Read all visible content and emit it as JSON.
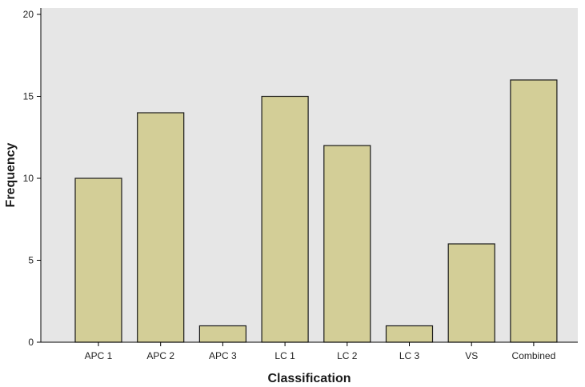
{
  "chart_data": {
    "type": "bar",
    "title": "",
    "xlabel": "Classification",
    "ylabel": "Frequency",
    "categories": [
      "APC 1",
      "APC 2",
      "APC 3",
      "LC 1",
      "LC 2",
      "LC 3",
      "VS",
      "Combined"
    ],
    "values": [
      10,
      14,
      1,
      15,
      12,
      1,
      6,
      16
    ],
    "ylim": [
      0,
      20
    ],
    "yticks": [
      "0",
      "5",
      "10",
      "15",
      "20"
    ],
    "grid": false,
    "legend": "none",
    "colors": {
      "plot_background": "#e6e6e6",
      "bar_fill": "#d3ce97",
      "bar_stroke": "#1a1a1a",
      "axis": "#000000"
    }
  }
}
